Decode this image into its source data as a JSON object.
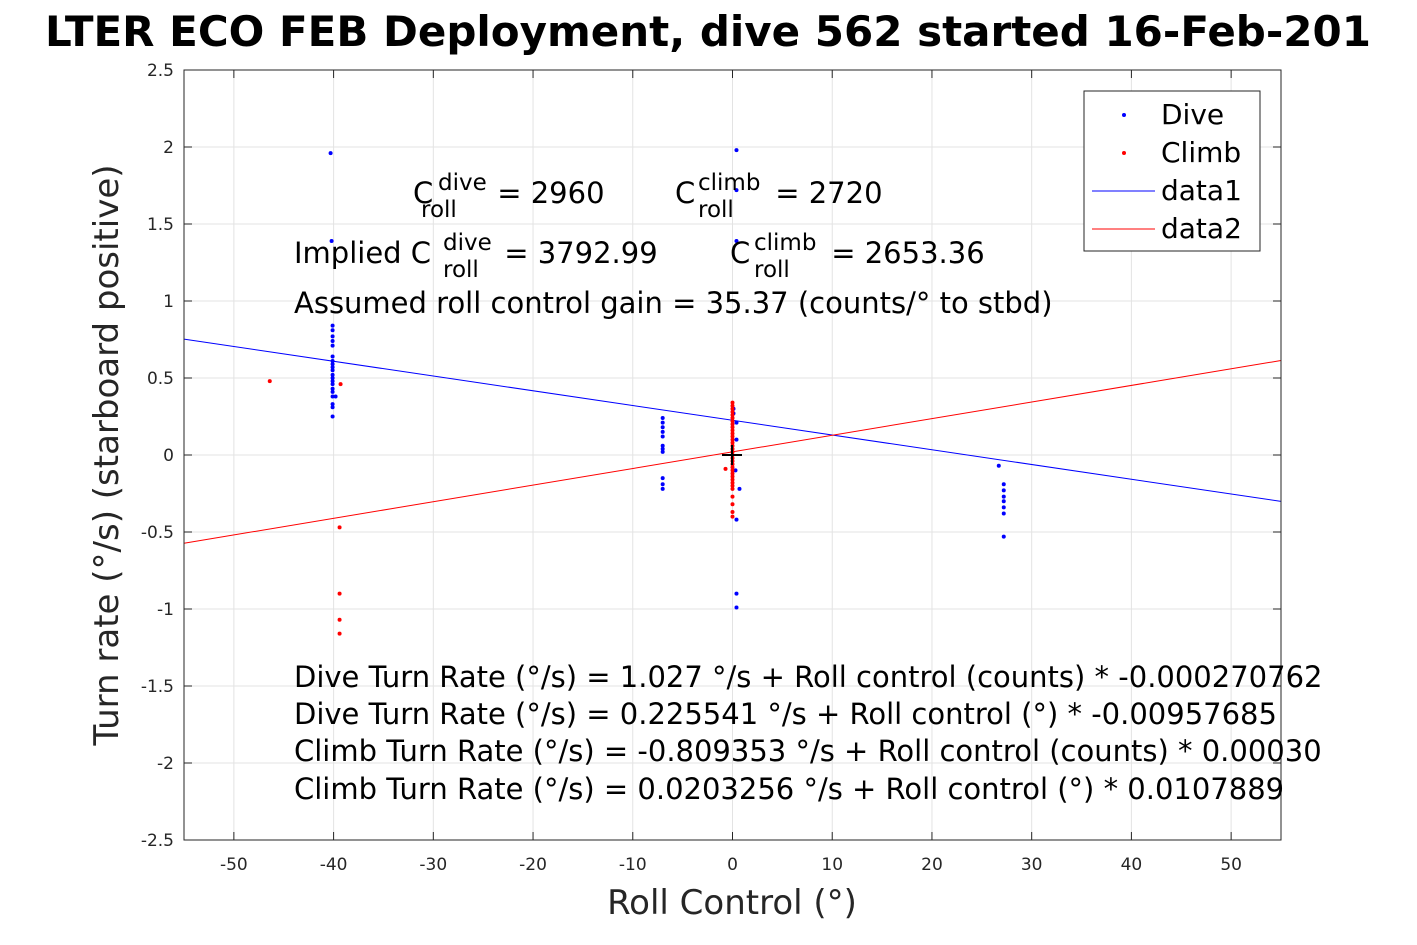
{
  "chart_data": {
    "type": "scatter",
    "title": "LTER ECO FEB Deployment, dive 562 started 16-Feb-201",
    "xlabel": "Roll Control (°)",
    "ylabel": "Turn rate (°/s) (starboard positive)",
    "xlim": [
      -55,
      55
    ],
    "ylim": [
      -2.5,
      2.5
    ],
    "xticks": [
      -50,
      -40,
      -30,
      -20,
      -10,
      0,
      10,
      20,
      30,
      40,
      50
    ],
    "yticks": [
      -2.5,
      -2,
      -1.5,
      -1,
      -0.5,
      0,
      0.5,
      1,
      1.5,
      2,
      2.5
    ],
    "grid": true,
    "legend": {
      "placement": "top-right",
      "entries": [
        {
          "label": "Dive",
          "color": "#0000ff",
          "marker": "point"
        },
        {
          "label": "Climb",
          "color": "#ff0000",
          "marker": "point"
        },
        {
          "label": "data1",
          "color": "#0000ff",
          "marker": "line"
        },
        {
          "label": "data2",
          "color": "#ff0000",
          "marker": "line"
        }
      ]
    },
    "series": [
      {
        "name": "Dive",
        "color": "#0000ff",
        "points": [
          [
            -40.3,
            1.96
          ],
          [
            -40.2,
            1.39
          ],
          [
            -40.1,
            0.84
          ],
          [
            -40.1,
            0.81
          ],
          [
            -40.1,
            0.77
          ],
          [
            -40.1,
            0.74
          ],
          [
            -40.1,
            0.71
          ],
          [
            -40.1,
            0.64
          ],
          [
            -40.1,
            0.61
          ],
          [
            -40.1,
            0.59
          ],
          [
            -40.1,
            0.57
          ],
          [
            -40.1,
            0.55
          ],
          [
            -40.1,
            0.52
          ],
          [
            -40.1,
            0.5
          ],
          [
            -40.1,
            0.48
          ],
          [
            -40.1,
            0.46
          ],
          [
            -40.1,
            0.43
          ],
          [
            -40.1,
            0.41
          ],
          [
            -40.1,
            0.38
          ],
          [
            -40.1,
            0.33
          ],
          [
            -40.1,
            0.31
          ],
          [
            -40.1,
            0.25
          ],
          [
            -39.8,
            0.38
          ],
          [
            -7.0,
            0.24
          ],
          [
            -7.0,
            0.21
          ],
          [
            -7.0,
            0.18
          ],
          [
            -7.0,
            0.15
          ],
          [
            -7.0,
            0.12
          ],
          [
            -7.0,
            0.06
          ],
          [
            -7.0,
            0.04
          ],
          [
            -7.0,
            0.02
          ],
          [
            -7.0,
            -0.15
          ],
          [
            -7.0,
            -0.19
          ],
          [
            -7.0,
            -0.22
          ],
          [
            0.4,
            1.98
          ],
          [
            0.4,
            1.72
          ],
          [
            0.4,
            1.39
          ],
          [
            0.1,
            0.3
          ],
          [
            0.1,
            0.27
          ],
          [
            0.4,
            0.21
          ],
          [
            0.4,
            0.1
          ],
          [
            0.3,
            -0.1
          ],
          [
            0.7,
            -0.22
          ],
          [
            0.4,
            -0.42
          ],
          [
            0.4,
            -0.9
          ],
          [
            0.4,
            -0.99
          ],
          [
            26.7,
            -0.07
          ],
          [
            27.2,
            -0.19
          ],
          [
            27.2,
            -0.23
          ],
          [
            27.2,
            -0.27
          ],
          [
            27.2,
            -0.3
          ],
          [
            27.2,
            -0.34
          ],
          [
            27.2,
            -0.38
          ],
          [
            27.2,
            -0.53
          ]
        ]
      },
      {
        "name": "Climb",
        "color": "#ff0000",
        "points": [
          [
            -46.4,
            0.48
          ],
          [
            -39.3,
            0.46
          ],
          [
            -39.4,
            -0.47
          ],
          [
            -39.4,
            -0.9
          ],
          [
            -39.4,
            -1.07
          ],
          [
            -39.4,
            -1.16
          ],
          [
            -0.7,
            -0.09
          ],
          [
            0.0,
            0.34
          ],
          [
            0.0,
            0.32
          ],
          [
            0.0,
            0.3
          ],
          [
            0.0,
            0.28
          ],
          [
            0.0,
            0.26
          ],
          [
            0.0,
            0.24
          ],
          [
            0.0,
            0.22
          ],
          [
            0.0,
            0.2
          ],
          [
            0.0,
            0.18
          ],
          [
            0.0,
            0.16
          ],
          [
            0.0,
            0.14
          ],
          [
            0.0,
            0.12
          ],
          [
            0.0,
            0.1
          ],
          [
            0.0,
            0.08
          ],
          [
            0.0,
            0.06
          ],
          [
            0.0,
            0.04
          ],
          [
            0.0,
            0.02
          ],
          [
            0.0,
            0.0
          ],
          [
            0.0,
            -0.02
          ],
          [
            0.0,
            -0.04
          ],
          [
            0.0,
            -0.06
          ],
          [
            0.0,
            -0.08
          ],
          [
            0.0,
            -0.1
          ],
          [
            0.0,
            -0.12
          ],
          [
            0.0,
            -0.14
          ],
          [
            0.0,
            -0.16
          ],
          [
            0.0,
            -0.18
          ],
          [
            0.0,
            -0.2
          ],
          [
            0.0,
            -0.22
          ],
          [
            0.0,
            -0.27
          ],
          [
            0.0,
            -0.32
          ],
          [
            0.0,
            -0.37
          ],
          [
            0.0,
            -0.4
          ]
        ]
      },
      {
        "name": "data1",
        "color": "#0000ff",
        "type": "line",
        "intercept": 0.225541,
        "slope": -0.00957685
      },
      {
        "name": "data2",
        "color": "#ff0000",
        "type": "line",
        "intercept": 0.0203256,
        "slope": 0.0107889
      }
    ],
    "marker_point": [
      0,
      0
    ]
  },
  "annotations": {
    "c_roll_dive": {
      "base": "C",
      "sup": "dive",
      "sub": "roll",
      "rest": " = 2960"
    },
    "c_roll_climb": {
      "base": "C",
      "sup": "climb",
      "sub": "roll",
      "rest": " = 2720"
    },
    "implied_dive": {
      "prefix": "Implied C",
      "sup": "dive",
      "sub": "roll",
      "rest": " = 3792.99"
    },
    "implied_climb": {
      "base": "C",
      "sup": "climb",
      "sub": "roll",
      "rest": " = 2653.36"
    },
    "gain": "Assumed roll control gain = 35.37 (counts/° to stbd)",
    "eq1": "Dive Turn Rate (°/s) = 1.027 °/s + Roll control (counts) * -0.000270762",
    "eq2": "Dive Turn Rate (°/s) = 0.225541 °/s + Roll control (°) * -0.00957685",
    "eq3": "Climb Turn Rate (°/s) = -0.809353 °/s + Roll control (counts) * 0.00030",
    "eq4": "Climb Turn Rate (°/s) = 0.0203256 °/s + Roll control (°) * 0.0107889"
  }
}
